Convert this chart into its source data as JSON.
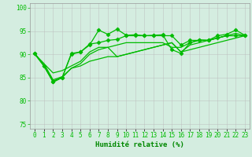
{
  "background_color": "#d4ede0",
  "grid_color": "#bbbbbb",
  "xlabel": "Humidité relative (%)",
  "xlabel_color": "#008800",
  "ylim": [
    74,
    101
  ],
  "xlim": [
    -0.5,
    23.5
  ],
  "yticks": [
    75,
    80,
    85,
    90,
    95,
    100
  ],
  "xtick_labels": [
    "0",
    "1",
    "2",
    "3",
    "4",
    "5",
    "6",
    "7",
    "8",
    "9",
    "10",
    "11",
    "12",
    "13",
    "14",
    "15",
    "16",
    "17",
    "18",
    "19",
    "20",
    "21",
    "22",
    "23"
  ],
  "line_color": "#00bb00",
  "lines": [
    [
      90.2,
      87.5,
      84.2,
      85.0,
      90.2,
      90.5,
      92.0,
      95.2,
      94.3,
      95.4,
      94.1,
      94.2,
      94.0,
      94.1,
      94.2,
      91.0,
      90.2,
      92.5,
      93.1,
      93.0,
      94.0,
      94.3,
      95.2,
      94.1
    ],
    [
      90.2,
      87.5,
      84.2,
      85.0,
      90.0,
      90.5,
      92.2,
      92.5,
      93.0,
      93.2,
      94.0,
      94.0,
      94.0,
      94.0,
      94.0,
      94.0,
      92.0,
      93.0,
      93.0,
      93.0,
      93.5,
      94.0,
      94.0,
      94.0
    ],
    [
      90.0,
      88.0,
      86.0,
      86.5,
      87.5,
      88.5,
      90.5,
      91.5,
      91.5,
      92.0,
      92.5,
      92.5,
      92.5,
      92.5,
      92.5,
      91.5,
      91.5,
      92.5,
      93.0,
      93.0,
      93.5,
      94.0,
      94.0,
      94.0
    ],
    [
      90.0,
      88.0,
      84.5,
      85.2,
      87.0,
      88.0,
      90.0,
      91.0,
      91.5,
      89.5,
      90.0,
      90.5,
      91.0,
      91.5,
      92.0,
      92.5,
      90.5,
      92.0,
      92.5,
      93.0,
      93.5,
      94.0,
      94.5,
      94.0
    ],
    [
      90.0,
      87.5,
      84.0,
      85.0,
      87.0,
      87.5,
      88.5,
      89.0,
      89.5,
      89.5,
      90.0,
      90.5,
      91.0,
      91.5,
      92.0,
      92.5,
      90.5,
      91.0,
      91.5,
      92.0,
      92.5,
      93.0,
      93.5,
      94.0
    ]
  ],
  "marker_lines": [
    0,
    1
  ],
  "marker": "D",
  "markersize": 2.5,
  "linewidth": 0.9,
  "tick_fontsize": 5.5,
  "xlabel_fontsize": 6.5
}
